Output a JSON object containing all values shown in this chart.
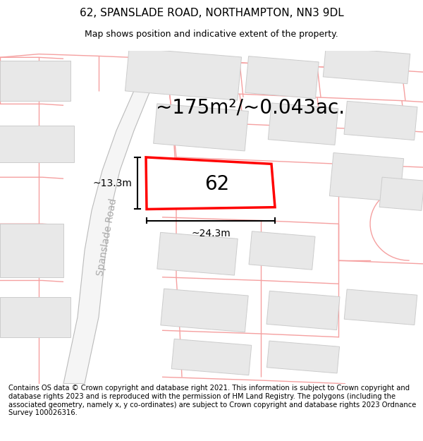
{
  "title_line1": "62, SPANSLADE ROAD, NORTHAMPTON, NN3 9DL",
  "title_line2": "Map shows position and indicative extent of the property.",
  "area_text": "~175m²/~0.043ac.",
  "property_number": "62",
  "dim_width": "~24.3m",
  "dim_height": "~13.3m",
  "road_label": "Spanslade Road",
  "footer_text": "Contains OS data © Crown copyright and database right 2021. This information is subject to Crown copyright and database rights 2023 and is reproduced with the permission of HM Land Registry. The polygons (including the associated geometry, namely x, y co-ordinates) are subject to Crown copyright and database rights 2023 Ordnance Survey 100026316.",
  "bg_color": "#ffffff",
  "map_bg": "#ffffff",
  "building_fill": "#e8e8e8",
  "building_edge": "#cccccc",
  "street_color": "#f5a0a0",
  "road_edge": "#bbbbbb",
  "property_edge": "#ff0000",
  "property_fill": "#ffffff",
  "dim_color": "#000000",
  "title_fontsize": 11,
  "subtitle_fontsize": 9,
  "footer_fontsize": 7.2,
  "area_fontsize": 20,
  "number_fontsize": 20,
  "road_label_fontsize": 10,
  "map_border_color": "#cccccc"
}
